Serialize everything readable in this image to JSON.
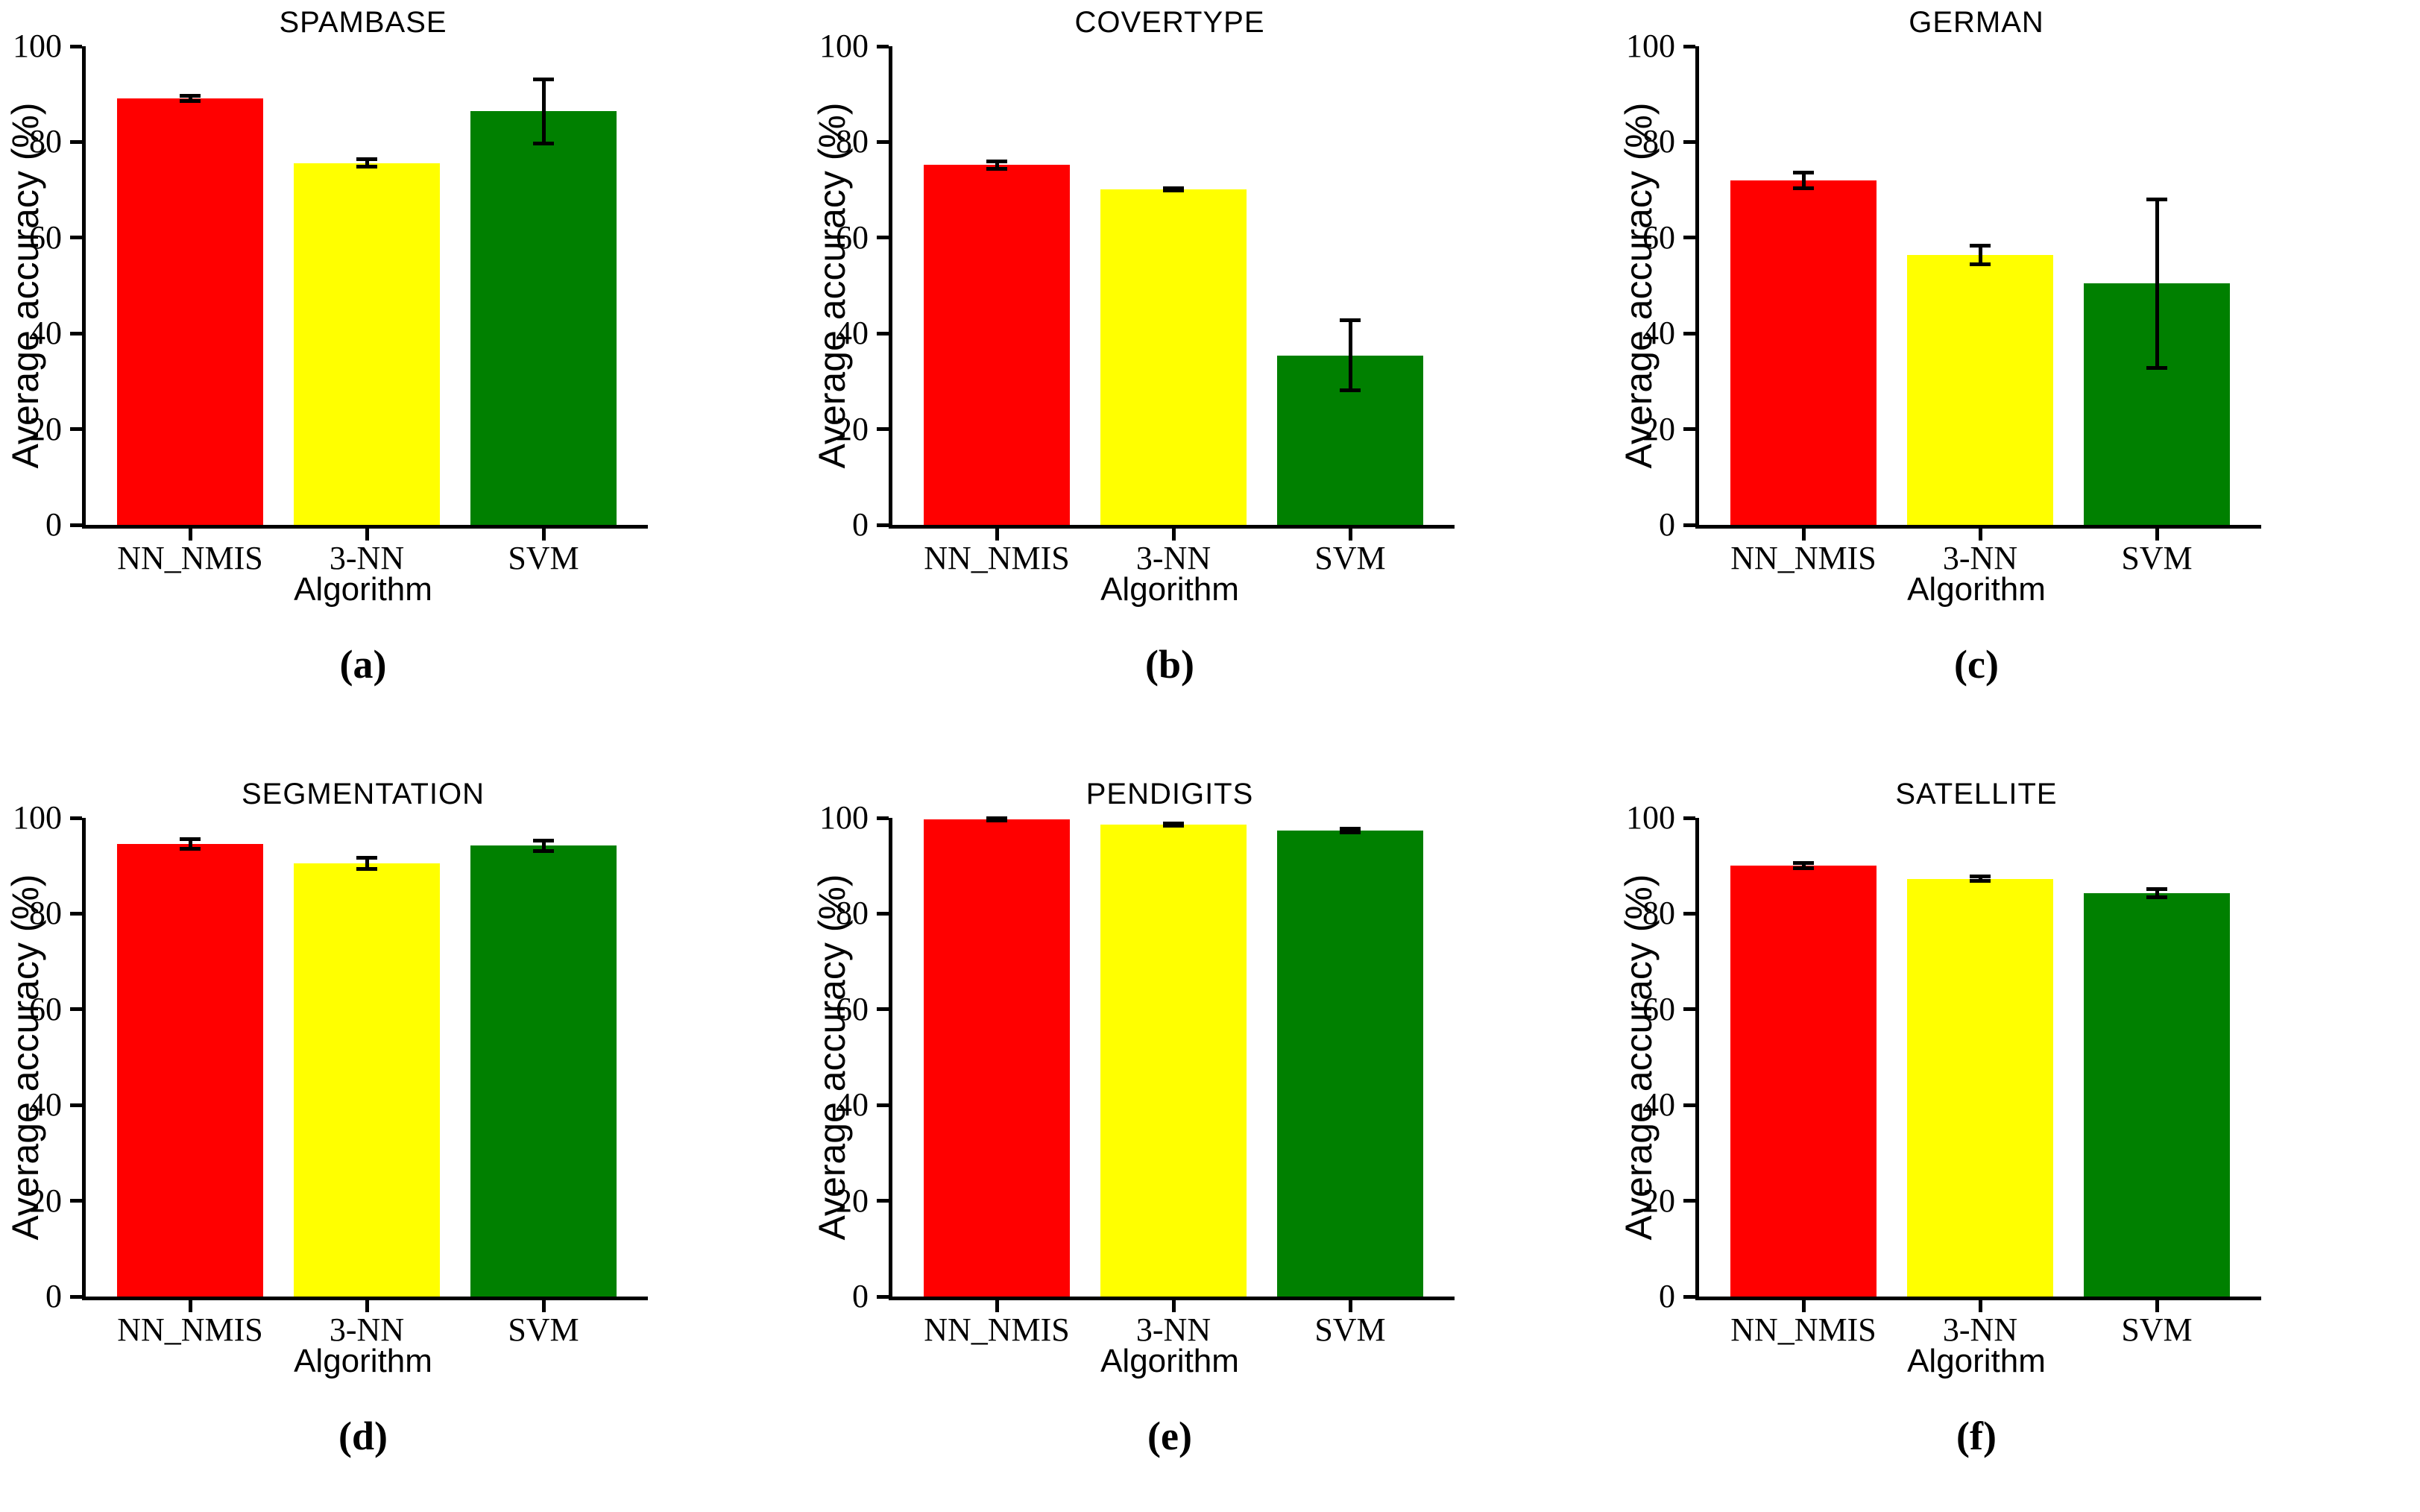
{
  "figure": {
    "ylabel": "Average accuracy (%)",
    "xlabel": "Algorithm",
    "algorithms": [
      "NN_NMIS",
      "3-NN",
      "SVM"
    ],
    "bar_colors": [
      "#ff0000",
      "#ffff00",
      "#008000"
    ],
    "axis_color": "#000000",
    "yticks": [
      0,
      20,
      40,
      60,
      80,
      100
    ],
    "ylim": [
      0,
      100
    ],
    "grid": "off",
    "legend": "none"
  },
  "chart_data": [
    {
      "type": "bar",
      "title": "SPAMBASE",
      "caption": "(a)",
      "categories": [
        "NN_NMIS",
        "3-NN",
        "SVM"
      ],
      "values": [
        89.1,
        75.6,
        86.4
      ],
      "errors": [
        0.5,
        0.8,
        6.7
      ],
      "xlabel": "Algorithm",
      "ylabel": "Average accuracy (%)",
      "ylim": [
        0,
        100
      ]
    },
    {
      "type": "bar",
      "title": "COVERTYPE",
      "caption": "(b)",
      "categories": [
        "NN_NMIS",
        "3-NN",
        "SVM"
      ],
      "values": [
        75.2,
        70.1,
        35.4
      ],
      "errors": [
        0.8,
        0.3,
        7.3
      ],
      "xlabel": "Algorithm",
      "ylabel": "Average accuracy (%)",
      "ylim": [
        0,
        100
      ]
    },
    {
      "type": "bar",
      "title": "GERMAN",
      "caption": "(c)",
      "categories": [
        "NN_NMIS",
        "3-NN",
        "SVM"
      ],
      "values": [
        72.0,
        56.4,
        50.4
      ],
      "errors": [
        1.6,
        1.9,
        17.6
      ],
      "xlabel": "Algorithm",
      "ylabel": "Average accuracy (%)",
      "ylim": [
        0,
        100
      ]
    },
    {
      "type": "bar",
      "title": "SEGMENTATION",
      "caption": "(d)",
      "categories": [
        "NN_NMIS",
        "3-NN",
        "SVM"
      ],
      "values": [
        94.5,
        90.5,
        94.2
      ],
      "errors": [
        1.0,
        1.2,
        1.1
      ],
      "xlabel": "Algorithm",
      "ylabel": "Average accuracy (%)",
      "ylim": [
        0,
        100
      ]
    },
    {
      "type": "bar",
      "title": "PENDIGITS",
      "caption": "(e)",
      "categories": [
        "NN_NMIS",
        "3-NN",
        "SVM"
      ],
      "values": [
        99.7,
        98.6,
        97.3
      ],
      "errors": [
        0.3,
        0.3,
        0.4
      ],
      "xlabel": "Algorithm",
      "ylabel": "Average accuracy (%)",
      "ylim": [
        0,
        100
      ]
    },
    {
      "type": "bar",
      "title": "SATELLITE",
      "caption": "(f)",
      "categories": [
        "NN_NMIS",
        "3-NN",
        "SVM"
      ],
      "values": [
        90.0,
        87.3,
        84.3
      ],
      "errors": [
        0.5,
        0.4,
        0.9
      ],
      "xlabel": "Algorithm",
      "ylabel": "Average accuracy (%)",
      "ylim": [
        0,
        100
      ]
    }
  ]
}
